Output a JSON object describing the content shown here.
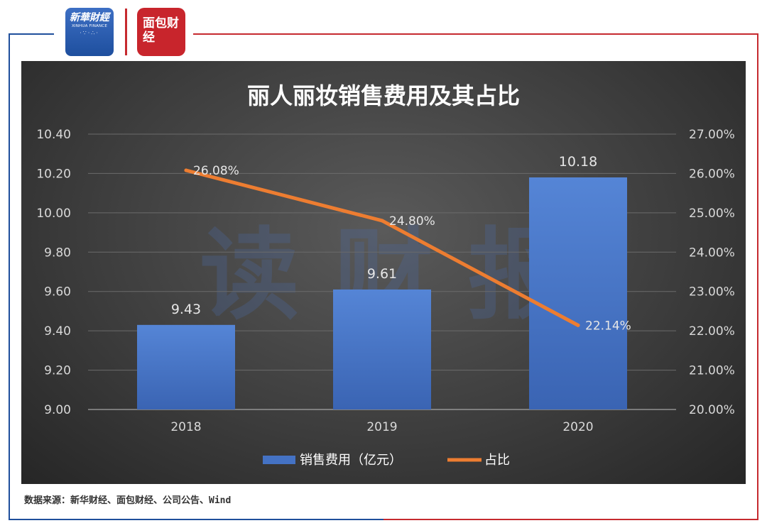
{
  "header": {
    "logo_left_name": "新華財經",
    "logo_left_subtitle": "XINHUA FINANCE",
    "logo_right_name": "面包财经"
  },
  "watermark": "读 财 报",
  "chart_data": {
    "type": "bar",
    "title": "丽人丽妆销售费用及其占比",
    "categories": [
      "2018",
      "2019",
      "2020"
    ],
    "series": [
      {
        "name": "销售费用（亿元）",
        "type": "bar",
        "axis": "left",
        "values": [
          9.43,
          9.61,
          10.18
        ],
        "labels": [
          "9.43",
          "9.61",
          "10.18"
        ],
        "color": "#4472c4"
      },
      {
        "name": "占比",
        "type": "line",
        "axis": "right",
        "values": [
          26.08,
          24.8,
          22.14
        ],
        "labels": [
          "26.08%",
          "24.80%",
          "22.14%"
        ],
        "color": "#ed7d31"
      }
    ],
    "y_left": {
      "range": [
        9.0,
        10.4
      ],
      "ticks": [
        "9.00",
        "9.20",
        "9.40",
        "9.60",
        "9.80",
        "10.00",
        "10.20",
        "10.40"
      ]
    },
    "y_right": {
      "range": [
        20,
        27
      ],
      "ticks": [
        "20.00%",
        "21.00%",
        "22.00%",
        "23.00%",
        "24.00%",
        "25.00%",
        "26.00%",
        "27.00%"
      ]
    },
    "grid": true,
    "legend_position": "bottom"
  },
  "footer": {
    "source": "数据来源：新华财经、面包财经、公司公告、Wind"
  }
}
